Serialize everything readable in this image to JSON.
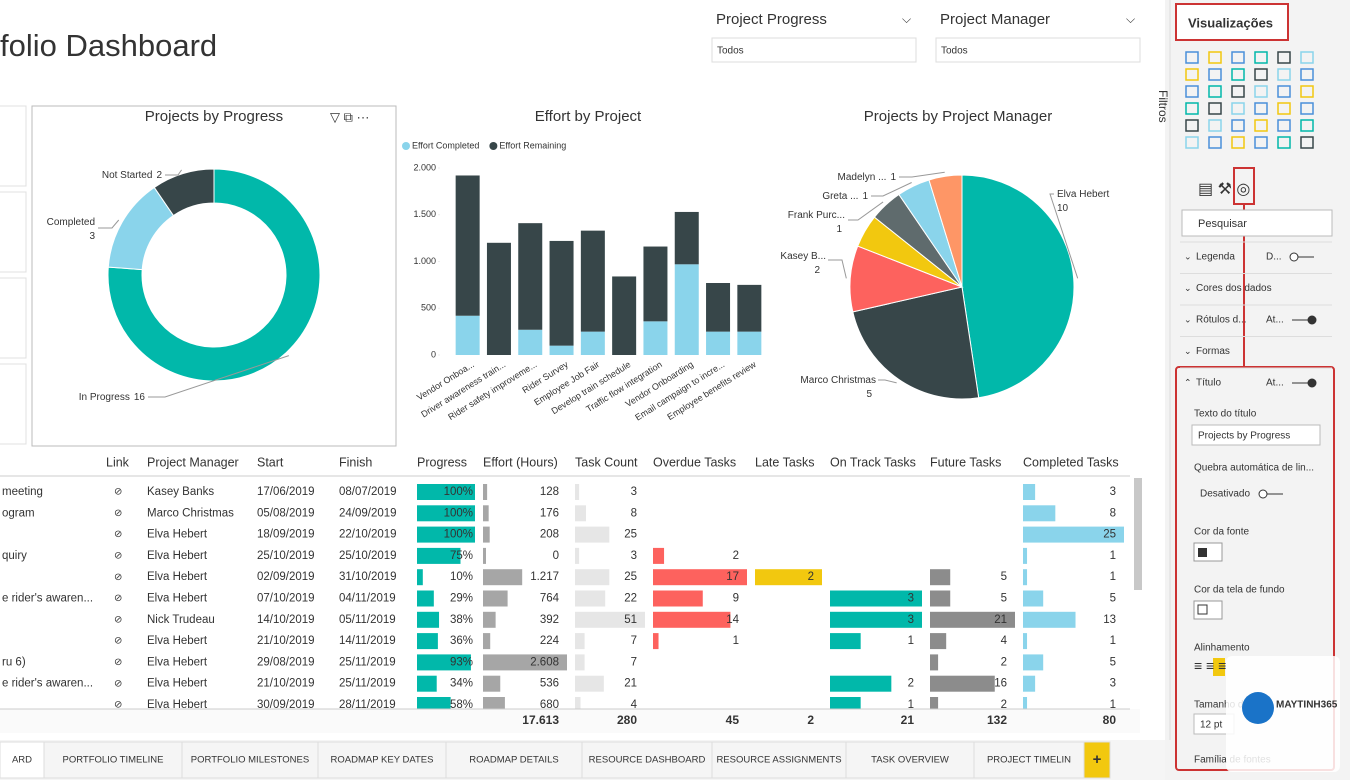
{
  "header": {
    "title": "folio Dashboard"
  },
  "slicers": [
    {
      "label": "Project Progress",
      "value": "Todos"
    },
    {
      "label": "Project Manager",
      "value": "Todos"
    }
  ],
  "donut": {
    "type": "pie",
    "title": "Projects by Progress",
    "categories": [
      "In Progress",
      "Completed",
      "Not Started"
    ],
    "values": [
      16,
      3,
      2
    ],
    "colors": [
      "#01b8aa",
      "#8ad4eb",
      "#374649"
    ]
  },
  "bar": {
    "type": "bar",
    "title": "Effort by Project",
    "stacked": true,
    "categories": [
      "Vendor Onboa...",
      "Driver awareness train...",
      "Rider safety improveme...",
      "Rider Survey",
      "Employee Job Fair",
      "Develop train schedule",
      "Traffic flow integration",
      "Vendor Onboarding",
      "Email campaign to incre...",
      "Employee benefits review"
    ],
    "series": [
      {
        "name": "Effort Completed",
        "color": "#8ad4eb",
        "values": [
          420,
          0,
          270,
          100,
          250,
          0,
          360,
          970,
          250,
          250
        ]
      },
      {
        "name": "Effort Remaining",
        "color": "#374649",
        "values": [
          1500,
          1200,
          1140,
          1120,
          1080,
          840,
          800,
          560,
          520,
          500
        ]
      }
    ],
    "ylim": [
      0,
      2000
    ],
    "yticks": [
      0,
      500,
      {
        "value": 1000,
        "label": "1.000"
      },
      {
        "value": 1500,
        "label": "1.500"
      },
      {
        "value": 2000,
        "label": "2.000"
      }
    ],
    "grid": false,
    "legend": "top-left"
  },
  "pie": {
    "type": "pie",
    "title": "Projects by Project Manager",
    "categories": [
      "Elva Hebert",
      "Marco Christmas",
      "Kasey B...",
      null,
      "Frank Purc...",
      "Greta ...",
      "Madelyn ..."
    ],
    "values": [
      10,
      5,
      2,
      1,
      1,
      1,
      1
    ],
    "colors": [
      "#01b8aa",
      "#374649",
      "#fd625e",
      "#f2c80f",
      "#5f6b6d",
      "#8ad4eb",
      "#fe9666"
    ]
  },
  "table": {
    "columns": [
      null,
      "Link",
      "Project Manager",
      "Start",
      "Finish",
      "Progress",
      "Effort (Hours)",
      "Task Count",
      "Overdue Tasks",
      "Late Tasks",
      "On Track Tasks",
      "Future Tasks",
      "Completed Tasks"
    ],
    "column_colors": [
      null,
      null,
      null,
      null,
      null,
      "#01b8aa",
      "#a6a6a6",
      "#e6e6e6",
      "#fd625e",
      "#f2c80f",
      "#01b8aa",
      "#8c8c8c",
      "#8ad4eb"
    ],
    "rows": [
      [
        "meeting",
        null,
        "Kasey Banks",
        "17/06/2019",
        "08/07/2019",
        {
          "value": 100,
          "label": "100%"
        },
        128,
        3,
        null,
        null,
        null,
        null,
        3
      ],
      [
        "ogram",
        null,
        "Marco Christmas",
        "05/08/2019",
        "24/09/2019",
        {
          "value": 100,
          "label": "100%"
        },
        176,
        8,
        null,
        null,
        null,
        null,
        8
      ],
      [
        null,
        null,
        "Elva Hebert",
        "18/09/2019",
        "22/10/2019",
        {
          "value": 100,
          "label": "100%"
        },
        208,
        25,
        null,
        null,
        null,
        null,
        25
      ],
      [
        "quiry",
        null,
        "Elva Hebert",
        "25/10/2019",
        "25/10/2019",
        {
          "value": 75,
          "label": "75%"
        },
        0,
        3,
        2,
        null,
        null,
        null,
        1
      ],
      [
        null,
        null,
        "Elva Hebert",
        "02/09/2019",
        "31/10/2019",
        {
          "value": 10,
          "label": "10%"
        },
        {
          "value": 1217,
          "label": "1.217"
        },
        25,
        17,
        2,
        null,
        5,
        1
      ],
      [
        "e rider's awaren...",
        null,
        "Elva Hebert",
        "07/10/2019",
        "04/11/2019",
        {
          "value": 29,
          "label": "29%"
        },
        764,
        22,
        9,
        null,
        3,
        5,
        5
      ],
      [
        null,
        null,
        "Nick Trudeau",
        "14/10/2019",
        "05/11/2019",
        {
          "value": 38,
          "label": "38%"
        },
        392,
        51,
        14,
        null,
        3,
        21,
        13
      ],
      [
        null,
        null,
        "Elva Hebert",
        "21/10/2019",
        "14/11/2019",
        {
          "value": 36,
          "label": "36%"
        },
        224,
        7,
        1,
        null,
        1,
        4,
        1
      ],
      [
        "ru 6)",
        null,
        "Elva Hebert",
        "29/08/2019",
        "25/11/2019",
        {
          "value": 93,
          "label": "93%"
        },
        {
          "value": 2608,
          "label": "2.608"
        },
        7,
        null,
        null,
        null,
        2,
        5
      ],
      [
        "e rider's awaren...",
        null,
        "Elva Hebert",
        "21/10/2019",
        "25/11/2019",
        {
          "value": 34,
          "label": "34%"
        },
        536,
        21,
        null,
        null,
        2,
        16,
        3
      ],
      [
        null,
        null,
        "Elva Hebert",
        "30/09/2019",
        "28/11/2019",
        {
          "value": 58,
          "label": "58%"
        },
        680,
        4,
        null,
        null,
        1,
        2,
        1
      ]
    ],
    "totals": [
      null,
      null,
      null,
      null,
      null,
      null,
      {
        "value": 17613,
        "label": "17.613"
      },
      280,
      45,
      2,
      21,
      132,
      80
    ]
  },
  "tabs": [
    "ARD",
    "PORTFOLIO TIMELINE",
    "PORTFOLIO MILESTONES",
    "ROADMAP KEY DATES",
    "ROADMAP DETAILS",
    "RESOURCE DASHBOARD",
    "RESOURCE ASSIGNMENTS",
    "TASK OVERVIEW",
    "PROJECT TIMELIN",
    "+"
  ],
  "panel": {
    "title": "Visualizações",
    "filters": "Filtros",
    "search": "Pesquisar",
    "sections": [
      {
        "name": "Legenda",
        "state": "D..."
      },
      {
        "name": "Cores dos dados"
      },
      {
        "name": "Rótulos d...",
        "state": "At..."
      },
      {
        "name": "Formas"
      },
      {
        "name": "Título",
        "state": "At..."
      }
    ],
    "title_text_label": "Texto do título",
    "title_text_value": "Projects by Progress",
    "wrap_label": "Quebra automática de lin...",
    "wrap_state": "Desativado",
    "font_color": "Cor da fonte",
    "bg_color": "Cor da tela de fundo",
    "align": "Alinhamento",
    "size_label": "Tamanho do texto",
    "size_value": "12 pt",
    "font_family": "Família de fontes",
    "watermark": "MAYTINH365"
  }
}
